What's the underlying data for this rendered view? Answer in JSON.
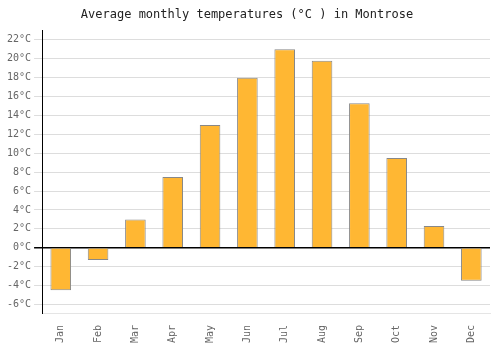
{
  "chart_data": {
    "type": "bar",
    "title": "Average monthly temperatures (°C ) in Montrose",
    "categories": [
      "Jan",
      "Feb",
      "Mar",
      "Apr",
      "May",
      "Jun",
      "Jul",
      "Aug",
      "Sep",
      "Oct",
      "Nov",
      "Dec"
    ],
    "values": [
      -4.5,
      -1.3,
      3.0,
      7.5,
      13.0,
      18.0,
      21.0,
      19.8,
      15.3,
      9.5,
      2.3,
      -3.5
    ],
    "color": "#FFB733",
    "ylim": [
      -7,
      23
    ],
    "yticks": [
      {
        "value": -6,
        "label": "-6°C"
      },
      {
        "value": -4,
        "label": "-4°C"
      },
      {
        "value": -2,
        "label": "-2°C"
      },
      {
        "value": 0,
        "label": "0°C"
      },
      {
        "value": 2,
        "label": "2°C"
      },
      {
        "value": 4,
        "label": "4°C"
      },
      {
        "value": 6,
        "label": "6°C"
      },
      {
        "value": 8,
        "label": "8°C"
      },
      {
        "value": 10,
        "label": "10°C"
      },
      {
        "value": 12,
        "label": "12°C"
      },
      {
        "value": 14,
        "label": "14°C"
      },
      {
        "value": 16,
        "label": "16°C"
      },
      {
        "value": 18,
        "label": "18°C"
      },
      {
        "value": 20,
        "label": "20°C"
      },
      {
        "value": 22,
        "label": "22°C"
      }
    ],
    "grid": true
  }
}
